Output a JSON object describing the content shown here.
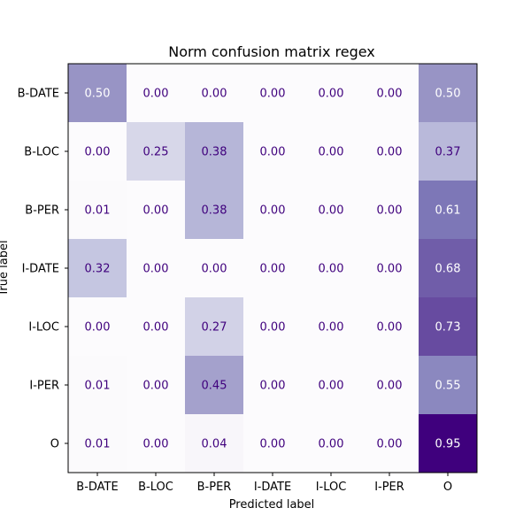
{
  "chart_data": {
    "type": "heatmap",
    "title": "Norm confusion matrix regex",
    "xlabel": "Predicted label",
    "ylabel": "True label",
    "x_categories": [
      "B-DATE",
      "B-LOC",
      "B-PER",
      "I-DATE",
      "I-LOC",
      "I-PER",
      "O"
    ],
    "y_categories": [
      "B-DATE",
      "B-LOC",
      "B-PER",
      "I-DATE",
      "I-LOC",
      "I-PER",
      "O"
    ],
    "values": [
      [
        0.5,
        0.0,
        0.0,
        0.0,
        0.0,
        0.0,
        0.5
      ],
      [
        0.0,
        0.25,
        0.38,
        0.0,
        0.0,
        0.0,
        0.37
      ],
      [
        0.01,
        0.0,
        0.38,
        0.0,
        0.0,
        0.0,
        0.61
      ],
      [
        0.32,
        0.0,
        0.0,
        0.0,
        0.0,
        0.0,
        0.68
      ],
      [
        0.0,
        0.0,
        0.27,
        0.0,
        0.0,
        0.0,
        0.73
      ],
      [
        0.01,
        0.0,
        0.45,
        0.0,
        0.0,
        0.0,
        0.55
      ],
      [
        0.01,
        0.0,
        0.04,
        0.0,
        0.0,
        0.0,
        0.95
      ]
    ],
    "value_range": [
      0.0,
      0.95
    ],
    "colormap": "Purples",
    "colors": {
      "text_dark": "#3f007d",
      "text_light": "#ffffff",
      "cmap_low": "#fcfbfd",
      "cmap_high": "#3f007d"
    }
  }
}
